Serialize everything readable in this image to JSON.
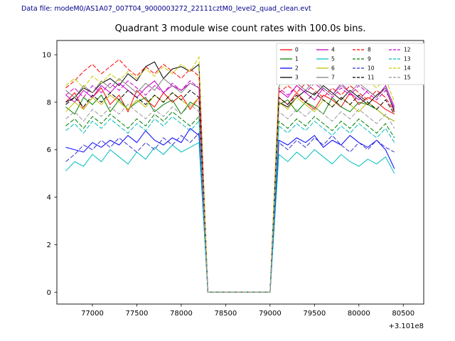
{
  "header": {
    "data_file_label": "Data file: modeM0/AS1A07_007T04_9000003272_22111cztM0_level2_quad_clean.evt",
    "color": "#00008b"
  },
  "chart_data": {
    "type": "line",
    "title": "Quadrant 3 module wise count rates with 100.0s bins.",
    "xlabel": "",
    "ylabel": "",
    "x_offset_label": "+3.101e8",
    "xlim": [
      76600,
      80730
    ],
    "ylim": [
      -0.5,
      10.6
    ],
    "xticks": [
      77000,
      77500,
      78000,
      78500,
      79000,
      79500,
      80000,
      80500
    ],
    "yticks": [
      0,
      2,
      4,
      6,
      8,
      10
    ],
    "legend": {
      "position": "upper right",
      "columns": 4
    },
    "gap_note": "counts drop to 0 between x=78300 and x=79000",
    "x": [
      76700,
      76800,
      76900,
      77000,
      77100,
      77200,
      77300,
      77400,
      77500,
      77600,
      77700,
      77800,
      77900,
      78000,
      78100,
      78200,
      78300,
      78400,
      78500,
      78600,
      78700,
      78800,
      78900,
      79000,
      79100,
      79200,
      79300,
      79400,
      79500,
      79600,
      79700,
      79800,
      79900,
      80000,
      80100,
      80200,
      80300,
      80400
    ],
    "series": [
      {
        "name": "0",
        "color": "#ff0000",
        "style": "solid",
        "values": [
          8.0,
          8.4,
          7.7,
          8.2,
          8.6,
          7.9,
          8.3,
          7.6,
          8.5,
          8.1,
          7.8,
          8.4,
          8.0,
          8.3,
          7.7,
          8.2,
          0,
          0,
          0,
          0,
          0,
          0,
          0,
          0,
          8.2,
          7.9,
          8.4,
          8.0,
          7.7,
          8.3,
          8.1,
          7.8,
          8.4,
          7.9,
          8.2,
          8.0,
          7.7,
          7.5
        ]
      },
      {
        "name": "1",
        "color": "#008000",
        "style": "solid",
        "values": [
          7.8,
          7.5,
          8.2,
          7.9,
          8.3,
          7.6,
          8.1,
          7.7,
          8.0,
          8.2,
          7.6,
          7.9,
          8.1,
          7.5,
          8.0,
          7.8,
          0,
          0,
          0,
          0,
          0,
          0,
          0,
          0,
          7.9,
          8.1,
          7.6,
          8.0,
          7.8,
          7.5,
          8.2,
          7.8,
          7.6,
          8.0,
          7.9,
          7.7,
          7.4,
          7.2
        ]
      },
      {
        "name": "2",
        "color": "#0000ff",
        "style": "solid",
        "values": [
          6.1,
          6.0,
          5.9,
          6.3,
          6.1,
          6.4,
          6.2,
          6.6,
          6.3,
          6.8,
          6.4,
          6.2,
          6.5,
          6.3,
          6.9,
          6.6,
          0,
          0,
          0,
          0,
          0,
          0,
          0,
          0,
          6.4,
          6.2,
          6.5,
          6.3,
          6.6,
          6.1,
          6.4,
          6.2,
          6.6,
          6.3,
          6.1,
          6.4,
          6.0,
          5.2
        ]
      },
      {
        "name": "3",
        "color": "#000000",
        "style": "solid",
        "values": [
          8.0,
          8.2,
          8.6,
          8.4,
          8.8,
          9.0,
          8.7,
          9.2,
          8.9,
          9.5,
          9.7,
          9.0,
          9.4,
          9.5,
          9.3,
          9.6,
          0,
          0,
          0,
          0,
          0,
          0,
          0,
          0,
          8.0,
          7.8,
          8.2,
          8.5,
          8.3,
          8.7,
          8.4,
          8.1,
          8.5,
          8.2,
          7.9,
          8.3,
          8.6,
          7.6
        ]
      },
      {
        "name": "4",
        "color": "#bf00bf",
        "style": "solid",
        "values": [
          8.3,
          8.0,
          8.5,
          8.2,
          8.7,
          8.4,
          8.8,
          8.5,
          8.2,
          8.6,
          8.9,
          8.4,
          8.7,
          8.5,
          8.8,
          8.6,
          0,
          0,
          0,
          0,
          0,
          0,
          0,
          0,
          8.5,
          8.2,
          8.7,
          8.4,
          8.1,
          8.6,
          8.3,
          8.8,
          8.4,
          8.1,
          8.5,
          8.2,
          8.7,
          7.8
        ]
      },
      {
        "name": "5",
        "color": "#00bfbf",
        "style": "solid",
        "values": [
          5.1,
          5.5,
          5.3,
          5.8,
          5.5,
          6.0,
          5.7,
          5.4,
          5.9,
          5.6,
          6.1,
          5.8,
          6.2,
          5.9,
          6.1,
          6.3,
          0,
          0,
          0,
          0,
          0,
          0,
          0,
          0,
          5.8,
          5.5,
          5.9,
          5.6,
          6.0,
          5.7,
          5.4,
          5.8,
          5.5,
          5.3,
          5.6,
          5.4,
          5.7,
          5.0
        ]
      },
      {
        "name": "6",
        "color": "#bfbf00",
        "style": "solid",
        "values": [
          7.6,
          8.0,
          7.7,
          8.2,
          7.9,
          8.3,
          8.0,
          7.7,
          8.1,
          7.8,
          8.3,
          8.0,
          8.4,
          8.1,
          7.8,
          8.2,
          0,
          0,
          0,
          0,
          0,
          0,
          0,
          0,
          8.0,
          7.7,
          8.2,
          7.9,
          7.6,
          8.1,
          7.8,
          8.2,
          7.9,
          7.6,
          8.0,
          7.7,
          7.4,
          7.2
        ]
      },
      {
        "name": "7",
        "color": "#7f7f7f",
        "style": "solid",
        "values": [
          8.5,
          8.2,
          8.7,
          8.4,
          8.9,
          8.6,
          9.0,
          8.7,
          8.4,
          8.8,
          8.5,
          9.0,
          8.7,
          8.4,
          8.8,
          8.6,
          0,
          0,
          0,
          0,
          0,
          0,
          0,
          0,
          8.6,
          9.9,
          8.8,
          8.5,
          8.9,
          8.6,
          8.3,
          8.7,
          8.4,
          8.8,
          8.5,
          8.2,
          8.6,
          7.7
        ]
      },
      {
        "name": "8",
        "color": "#ff0000",
        "style": "dashed",
        "values": [
          8.6,
          8.9,
          9.3,
          9.6,
          9.2,
          9.5,
          9.8,
          9.4,
          9.1,
          9.5,
          9.2,
          9.6,
          9.3,
          9.0,
          9.4,
          9.1,
          0,
          0,
          0,
          0,
          0,
          0,
          0,
          0,
          8.4,
          8.7,
          8.4,
          8.8,
          8.5,
          8.2,
          8.6,
          8.3,
          8.7,
          8.4,
          8.1,
          8.5,
          8.2,
          7.6
        ]
      },
      {
        "name": "9",
        "color": "#008000",
        "style": "dashed",
        "values": [
          7.0,
          7.3,
          6.9,
          7.4,
          7.1,
          7.5,
          7.2,
          6.9,
          7.3,
          7.0,
          7.5,
          7.2,
          7.6,
          7.3,
          7.0,
          7.4,
          0,
          0,
          0,
          0,
          0,
          0,
          0,
          0,
          7.2,
          6.9,
          7.3,
          7.0,
          7.4,
          7.1,
          6.8,
          7.2,
          6.9,
          7.3,
          7.0,
          6.7,
          7.1,
          6.5
        ]
      },
      {
        "name": "10",
        "color": "#3333cc",
        "style": "dashed",
        "values": [
          5.5,
          5.8,
          6.2,
          6.0,
          6.4,
          6.1,
          6.5,
          6.2,
          5.9,
          6.3,
          6.0,
          6.5,
          6.2,
          6.6,
          6.3,
          6.7,
          0,
          0,
          0,
          0,
          0,
          0,
          0,
          0,
          6.3,
          6.0,
          6.4,
          6.1,
          6.5,
          6.2,
          6.6,
          6.2,
          5.9,
          6.3,
          6.0,
          6.4,
          6.1,
          5.9
        ]
      },
      {
        "name": "11",
        "color": "#000000",
        "style": "dashed",
        "values": [
          7.9,
          8.2,
          7.8,
          8.3,
          8.0,
          8.4,
          8.1,
          8.5,
          8.2,
          7.9,
          8.3,
          8.0,
          8.4,
          8.1,
          8.5,
          8.2,
          0,
          0,
          0,
          0,
          0,
          0,
          0,
          0,
          8.2,
          7.9,
          8.3,
          8.0,
          8.4,
          8.1,
          7.8,
          8.2,
          7.9,
          8.3,
          8.0,
          7.7,
          8.1,
          7.5
        ]
      },
      {
        "name": "12",
        "color": "#cc00cc",
        "style": "dashed",
        "values": [
          8.3,
          8.6,
          8.2,
          8.7,
          8.4,
          8.8,
          8.5,
          8.9,
          8.6,
          8.3,
          8.7,
          8.4,
          8.8,
          8.5,
          8.9,
          8.6,
          0,
          0,
          0,
          0,
          0,
          0,
          0,
          0,
          8.6,
          8.3,
          8.7,
          8.4,
          8.8,
          8.5,
          8.2,
          8.6,
          8.3,
          8.7,
          8.4,
          8.1,
          8.5,
          7.7
        ]
      },
      {
        "name": "13",
        "color": "#00bbbb",
        "style": "dashed",
        "values": [
          6.8,
          7.1,
          6.7,
          7.2,
          6.9,
          7.3,
          7.0,
          6.7,
          7.1,
          6.8,
          7.3,
          7.0,
          7.4,
          7.1,
          6.8,
          7.2,
          0,
          0,
          0,
          0,
          0,
          0,
          0,
          0,
          7.0,
          6.7,
          7.1,
          6.8,
          7.2,
          6.9,
          6.6,
          7.0,
          6.7,
          7.1,
          6.8,
          6.5,
          6.9,
          6.3
        ]
      },
      {
        "name": "14",
        "color": "#cccc00",
        "style": "dashed",
        "values": [
          8.7,
          9.0,
          8.6,
          9.1,
          8.8,
          9.2,
          8.9,
          9.3,
          9.0,
          9.4,
          9.1,
          9.5,
          9.2,
          9.6,
          9.3,
          9.9,
          0,
          0,
          0,
          0,
          0,
          0,
          0,
          0,
          9.0,
          8.7,
          9.1,
          8.8,
          9.2,
          8.9,
          9.5,
          9.1,
          8.8,
          9.2,
          8.9,
          8.6,
          9.0,
          8.0
        ]
      },
      {
        "name": "15",
        "color": "#999999",
        "style": "dashed",
        "values": [
          7.3,
          7.6,
          7.2,
          7.7,
          7.4,
          7.8,
          7.5,
          7.9,
          7.6,
          7.3,
          7.7,
          7.4,
          7.8,
          7.5,
          7.9,
          7.6,
          0,
          0,
          0,
          0,
          0,
          0,
          0,
          0,
          7.6,
          7.3,
          7.7,
          7.4,
          7.8,
          7.5,
          7.2,
          7.6,
          7.3,
          7.7,
          7.4,
          7.1,
          7.5,
          6.9
        ]
      }
    ]
  }
}
